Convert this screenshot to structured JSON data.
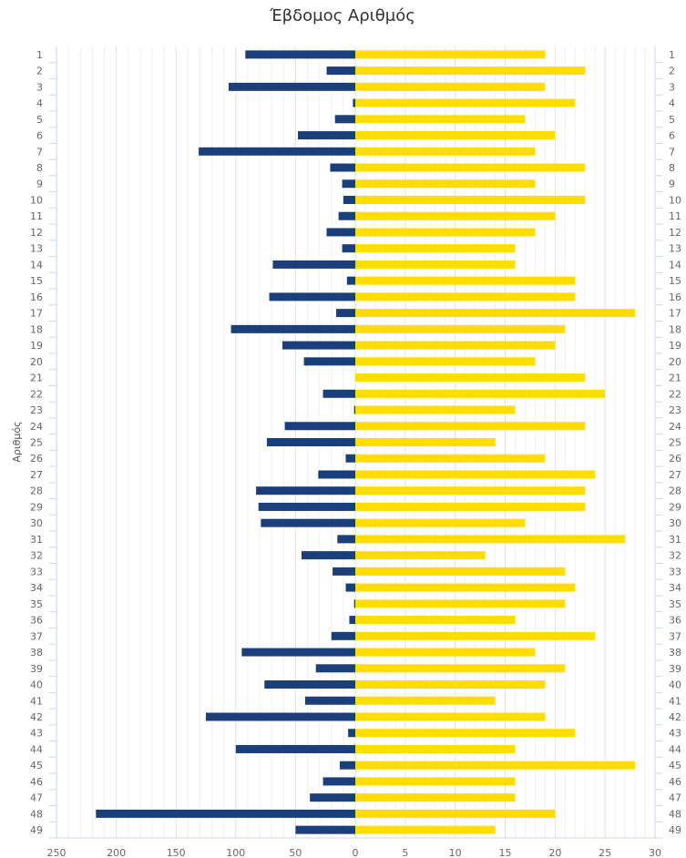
{
  "chart_data": {
    "type": "bar",
    "orientation": "horizontal-back-to-back",
    "title": "Έβδομος Αριθμός",
    "ylabel": "Αριθμός",
    "categories": [
      "1",
      "2",
      "3",
      "4",
      "5",
      "6",
      "7",
      "8",
      "9",
      "10",
      "11",
      "12",
      "13",
      "14",
      "15",
      "16",
      "17",
      "18",
      "19",
      "20",
      "21",
      "22",
      "23",
      "24",
      "25",
      "26",
      "27",
      "28",
      "29",
      "30",
      "31",
      "32",
      "33",
      "34",
      "35",
      "36",
      "37",
      "38",
      "39",
      "40",
      "41",
      "42",
      "43",
      "44",
      "45",
      "46",
      "47",
      "48",
      "49"
    ],
    "series": [
      {
        "name": "left",
        "color": "#1b3f7a",
        "axis": "bottom-left",
        "values": [
          92,
          24,
          106,
          2,
          17,
          48,
          131,
          21,
          11,
          10,
          14,
          24,
          11,
          69,
          7,
          72,
          16,
          104,
          61,
          43,
          0,
          27,
          1,
          59,
          74,
          8,
          31,
          83,
          81,
          79,
          15,
          45,
          19,
          8,
          1,
          5,
          20,
          95,
          33,
          76,
          42,
          125,
          6,
          100,
          13,
          27,
          38,
          217,
          50
        ]
      },
      {
        "name": "right",
        "color": "#ffdd00",
        "axis": "bottom-right",
        "values": [
          19,
          23,
          19,
          22,
          17,
          20,
          18,
          23,
          18,
          23,
          20,
          18,
          16,
          16,
          22,
          22,
          28,
          21,
          20,
          18,
          23,
          25,
          16,
          23,
          14,
          19,
          24,
          23,
          23,
          17,
          27,
          13,
          21,
          22,
          21,
          16,
          24,
          18,
          21,
          19,
          14,
          19,
          22,
          16,
          28,
          16,
          16,
          20,
          14
        ]
      }
    ],
    "xaxis_left": {
      "ticks": [
        "250",
        "200",
        "150",
        "100",
        "50",
        "0"
      ],
      "range": [
        0,
        250
      ]
    },
    "xaxis_right": {
      "ticks": [
        "0",
        "5",
        "10",
        "15",
        "20",
        "25",
        "30"
      ],
      "range": [
        0,
        30
      ]
    },
    "grid": true,
    "legend": "none"
  }
}
